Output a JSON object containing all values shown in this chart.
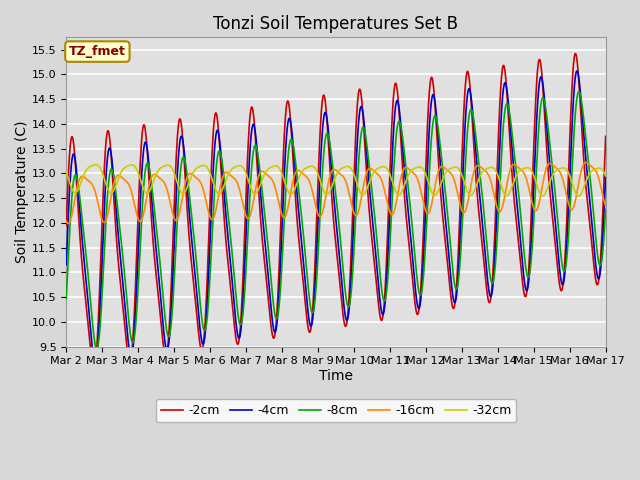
{
  "title": "Tonzi Soil Temperatures Set B",
  "xlabel": "Time",
  "ylabel": "Soil Temperature (C)",
  "ylim": [
    9.5,
    15.75
  ],
  "xlim": [
    0,
    15
  ],
  "xtick_labels": [
    "Mar 2",
    "Mar 3",
    "Mar 4",
    "Mar 5",
    "Mar 6",
    "Mar 7",
    "Mar 8",
    "Mar 9",
    "Mar 10",
    "Mar 11",
    "Mar 12",
    "Mar 13",
    "Mar 14",
    "Mar 15",
    "Mar 16",
    "Mar 17"
  ],
  "xtick_positions": [
    0,
    1,
    2,
    3,
    4,
    5,
    6,
    7,
    8,
    9,
    10,
    11,
    12,
    13,
    14,
    15
  ],
  "series_colors": [
    "#cc0000",
    "#0000cc",
    "#00aa00",
    "#ff8800",
    "#cccc00"
  ],
  "series_labels": [
    "-2cm",
    "-4cm",
    "-8cm",
    "-16cm",
    "-32cm"
  ],
  "legend_label": "TZ_fmet",
  "legend_box_color": "#ffffcc",
  "legend_box_edge": "#aa8800",
  "background_color": "#e0e0e0",
  "grid_color": "#ffffff",
  "title_fontsize": 12,
  "axis_fontsize": 10,
  "tick_fontsize": 8,
  "line_width": 1.2,
  "n_points": 1500
}
